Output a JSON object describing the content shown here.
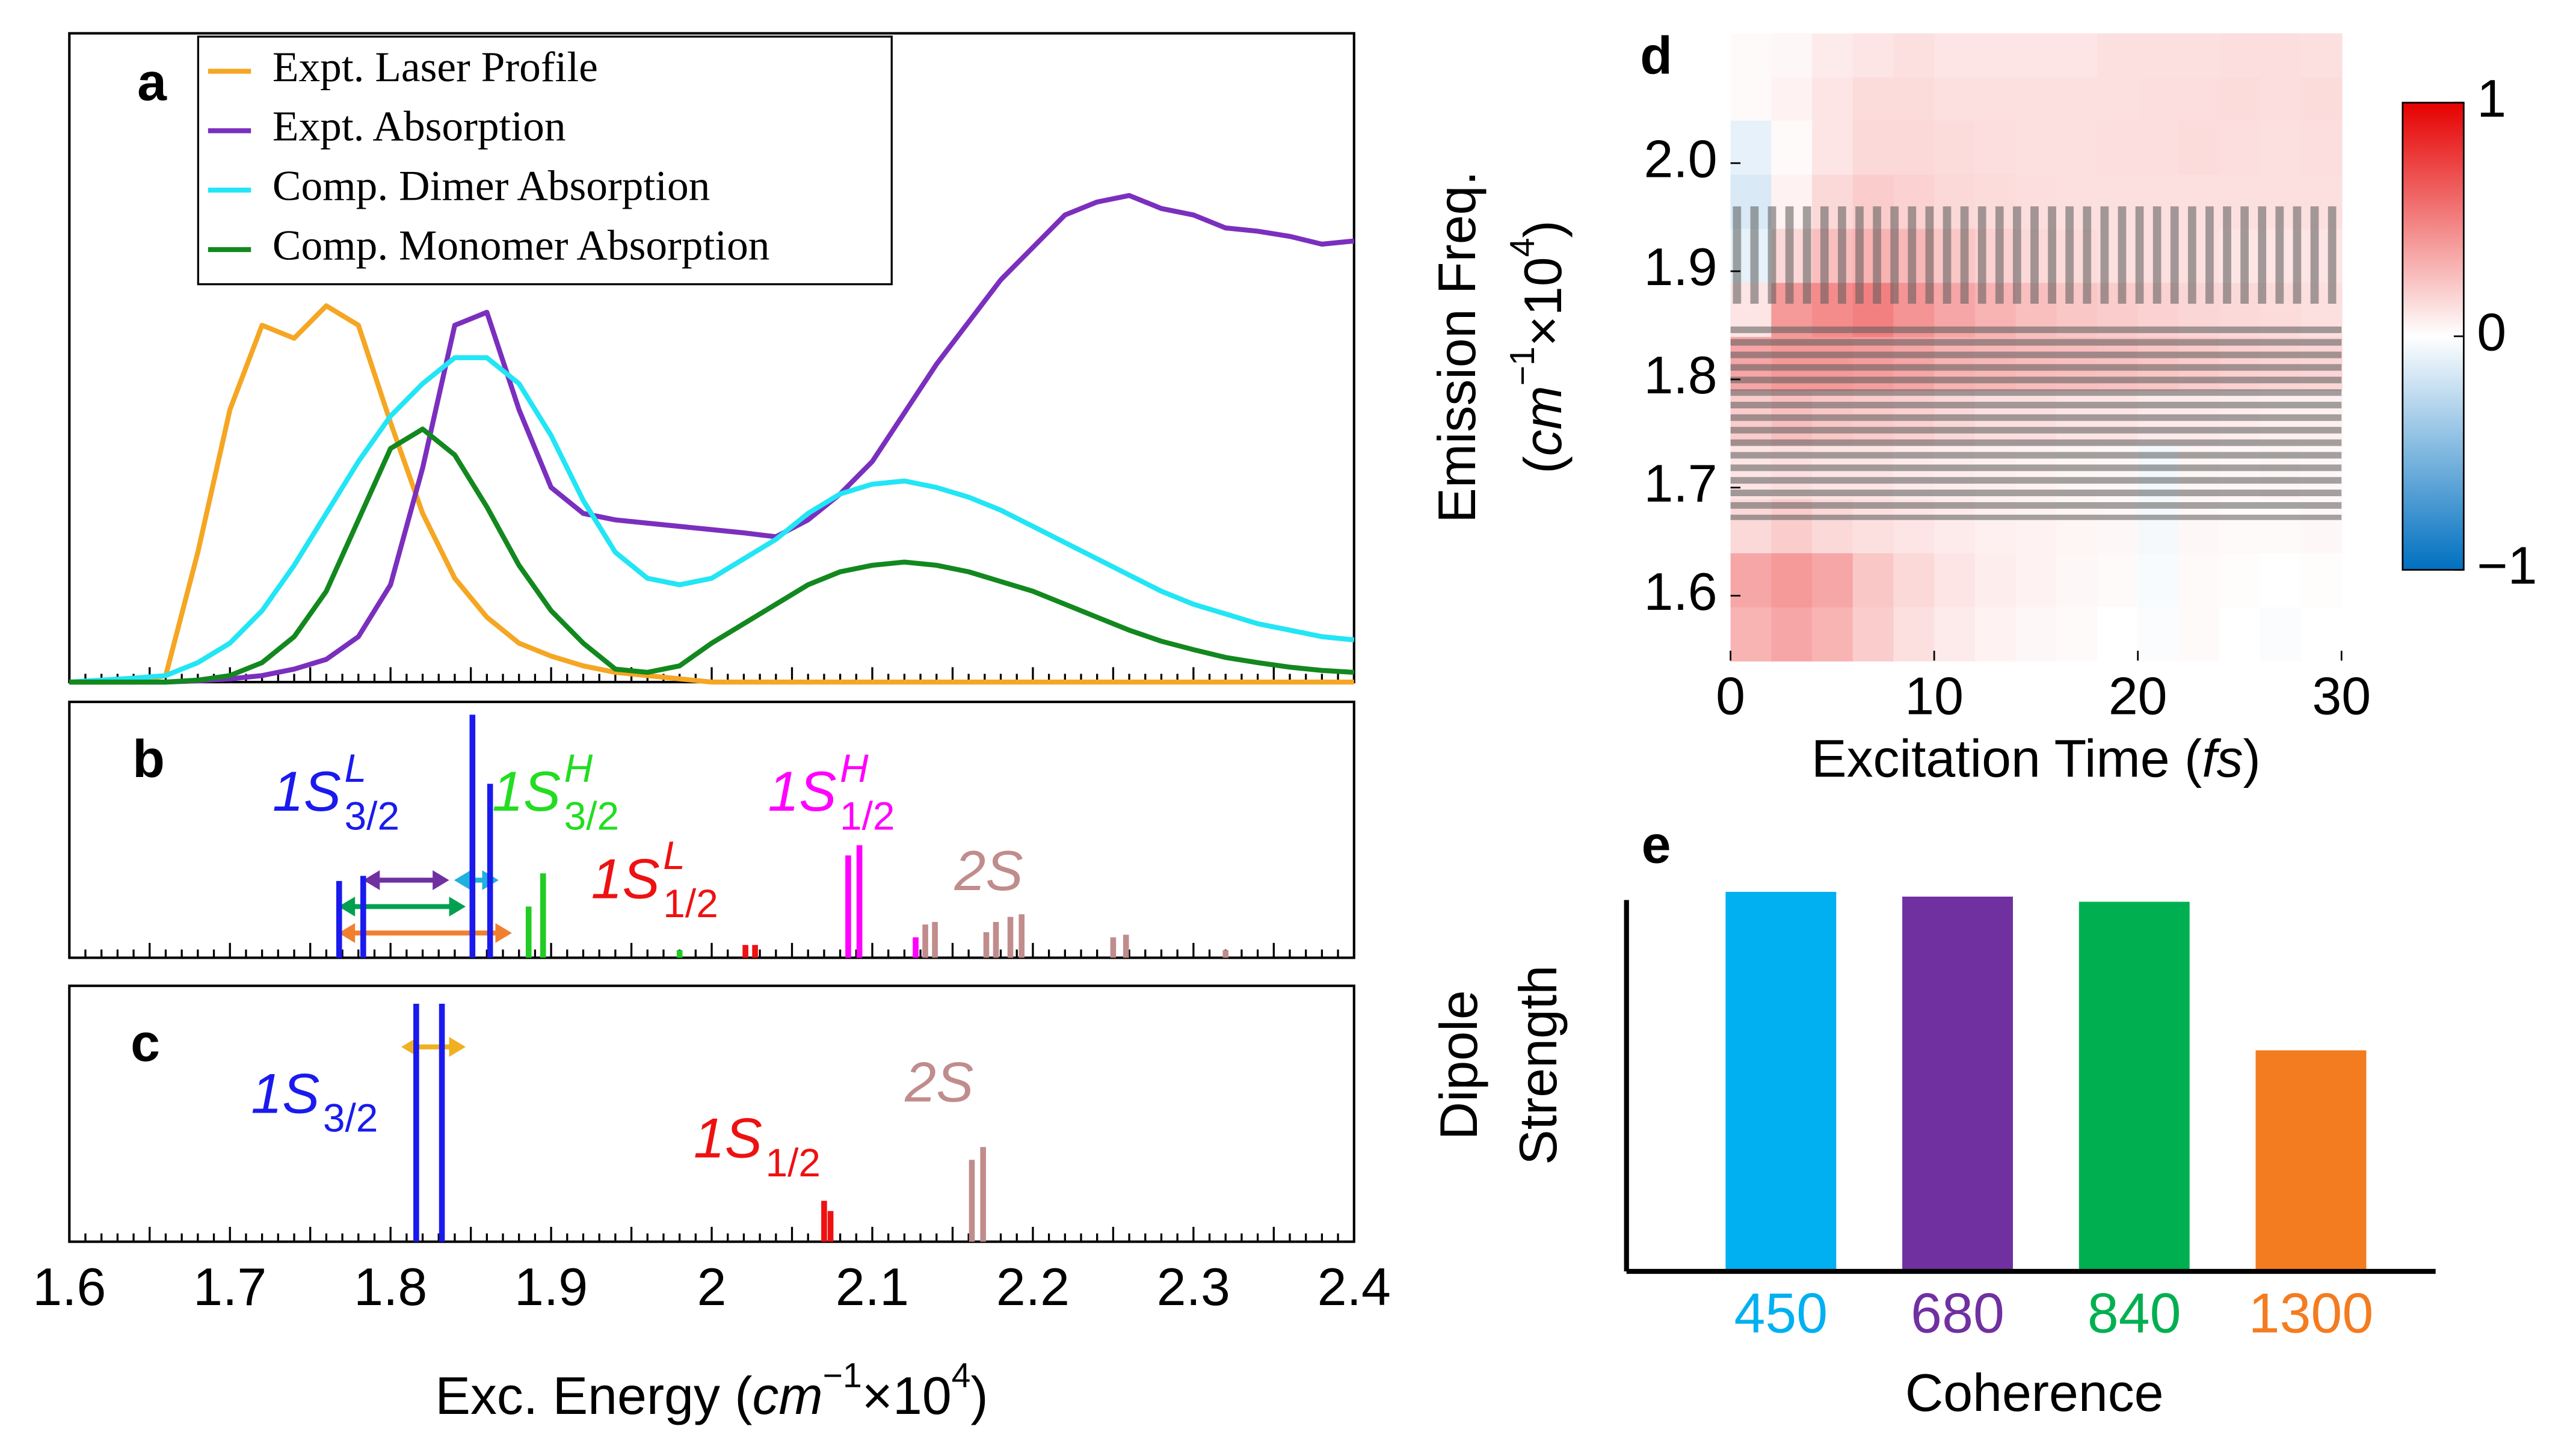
{
  "chart_data": [
    {
      "type": "line",
      "label": "a",
      "legend": "upper left",
      "xlim": [
        1.6,
        2.4
      ],
      "ylim": [
        0,
        1
      ],
      "x": [
        1.6,
        1.62,
        1.64,
        1.66,
        1.68,
        1.7,
        1.72,
        1.74,
        1.76,
        1.78,
        1.8,
        1.82,
        1.84,
        1.86,
        1.88,
        1.9,
        1.92,
        1.94,
        1.96,
        1.98,
        2.0,
        2.02,
        2.04,
        2.06,
        2.08,
        2.1,
        2.12,
        2.14,
        2.16,
        2.18,
        2.2,
        2.22,
        2.24,
        2.26,
        2.28,
        2.3,
        2.32,
        2.34,
        2.36,
        2.38,
        2.4
      ],
      "series": [
        {
          "name": "Expt. Laser Profile",
          "color": "#f5a623",
          "values": [
            0,
            0,
            0,
            0.01,
            0.2,
            0.42,
            0.55,
            0.53,
            0.58,
            0.55,
            0.4,
            0.26,
            0.16,
            0.1,
            0.06,
            0.04,
            0.025,
            0.015,
            0.01,
            0.005,
            0,
            0,
            0,
            0,
            0,
            0,
            0,
            0,
            0,
            0,
            0,
            0,
            0,
            0,
            0,
            0,
            0,
            0,
            0,
            0,
            0
          ]
        },
        {
          "name": "Expt. Absorption",
          "color": "#7b2fbe",
          "values": [
            0,
            0,
            0,
            0,
            0.002,
            0.005,
            0.01,
            0.02,
            0.035,
            0.07,
            0.15,
            0.33,
            0.55,
            0.57,
            0.42,
            0.3,
            0.26,
            0.25,
            0.245,
            0.24,
            0.235,
            0.23,
            0.224,
            0.25,
            0.29,
            0.34,
            0.415,
            0.49,
            0.555,
            0.62,
            0.67,
            0.72,
            0.74,
            0.75,
            0.73,
            0.72,
            0.7,
            0.695,
            0.687,
            0.675,
            0.68
          ]
        },
        {
          "name": "Comp. Dimer Absorption",
          "color": "#22e5f5",
          "values": [
            0,
            0.003,
            0.006,
            0.01,
            0.03,
            0.06,
            0.11,
            0.18,
            0.26,
            0.34,
            0.41,
            0.46,
            0.5,
            0.5,
            0.46,
            0.38,
            0.28,
            0.2,
            0.16,
            0.15,
            0.16,
            0.19,
            0.22,
            0.26,
            0.29,
            0.305,
            0.31,
            0.3,
            0.285,
            0.265,
            0.24,
            0.215,
            0.19,
            0.165,
            0.14,
            0.12,
            0.105,
            0.09,
            0.08,
            0.07,
            0.065
          ]
        },
        {
          "name": "Comp. Monomer Absorption",
          "color": "#12881e",
          "values": [
            0,
            0,
            0,
            0,
            0.003,
            0.01,
            0.03,
            0.07,
            0.14,
            0.25,
            0.36,
            0.39,
            0.35,
            0.27,
            0.18,
            0.11,
            0.06,
            0.02,
            0.015,
            0.025,
            0.06,
            0.09,
            0.12,
            0.15,
            0.17,
            0.18,
            0.185,
            0.18,
            0.17,
            0.155,
            0.14,
            0.12,
            0.1,
            0.08,
            0.063,
            0.05,
            0.038,
            0.03,
            0.023,
            0.018,
            0.015
          ]
        }
      ]
    },
    {
      "type": "stick",
      "label": "b",
      "xlim": [
        1.6,
        2.4
      ],
      "ylim": [
        0,
        1
      ],
      "series": [
        {
          "color": "#1a1aee",
          "x": [
            1.768,
            1.783,
            1.851,
            1.862
          ],
          "values": [
            0.3,
            0.32,
            0.95,
            0.68
          ]
        },
        {
          "color": "#22cc22",
          "x": [
            1.886,
            1.895,
            1.98
          ],
          "values": [
            0.2,
            0.33,
            0.03
          ]
        },
        {
          "color": "#ee1111",
          "x": [
            2.021,
            2.027
          ],
          "values": [
            0.05,
            0.05
          ]
        },
        {
          "color": "#ff00ff",
          "x": [
            2.085,
            2.092,
            2.127
          ],
          "values": [
            0.4,
            0.44,
            0.08
          ]
        },
        {
          "color": "#c08c8c",
          "x": [
            2.133,
            2.139,
            2.171,
            2.177,
            2.186,
            2.193,
            2.25,
            2.258,
            2.32
          ],
          "values": [
            0.13,
            0.14,
            0.1,
            0.14,
            0.16,
            0.17,
            0.08,
            0.09,
            0.03
          ]
        }
      ],
      "annotations": [
        {
          "text": "1S",
          "sup": "L",
          "sub": "3/2",
          "color": "#1a1aee"
        },
        {
          "text": "1S",
          "sup": "H",
          "sub": "3/2",
          "color": "#22dd22"
        },
        {
          "text": "1S",
          "sup": "L",
          "sub": "1/2",
          "color": "#ee1111"
        },
        {
          "text": "1S",
          "sup": "H",
          "sub": "1/2",
          "color": "#ff00ff"
        },
        {
          "text": "2S",
          "color": "#c08c8c"
        }
      ]
    },
    {
      "type": "stick",
      "label": "c",
      "xlim": [
        1.6,
        2.4
      ],
      "ylim": [
        0,
        1
      ],
      "xticks": [
        1.6,
        1.7,
        1.8,
        1.9,
        2.0,
        2.1,
        2.2,
        2.3,
        2.4
      ],
      "xlabel": [
        {
          "text": "Exc. Energy ("
        },
        {
          "text": "cm",
          "format": "italic"
        },
        {
          "text": "−1",
          "format": "sup"
        },
        {
          "text": "×10"
        },
        {
          "text": "4",
          "format": "sup"
        },
        {
          "text": ")"
        }
      ],
      "series": [
        {
          "color": "#1a1aee",
          "x": [
            1.816,
            1.832
          ],
          "values": [
            0.93,
            0.93
          ]
        },
        {
          "color": "#ee1111",
          "x": [
            2.07,
            2.074
          ],
          "values": [
            0.16,
            0.12
          ]
        },
        {
          "color": "#c08c8c",
          "x": [
            2.162,
            2.169
          ],
          "values": [
            0.32,
            0.37
          ]
        }
      ],
      "annotations": [
        {
          "text": "1S",
          "sub": "3/2",
          "color": "#1a1aee"
        },
        {
          "text": "1S",
          "sub": "1/2",
          "color": "#ee1111"
        },
        {
          "text": "2S",
          "color": "#c08c8c"
        }
      ]
    },
    {
      "type": "heatmap",
      "label": "d",
      "xlim": [
        0,
        30
      ],
      "ylim": [
        1.54,
        2.12
      ],
      "xticks": [
        0,
        10,
        20,
        30
      ],
      "yticks": [
        1.6,
        1.7,
        1.8,
        1.9,
        {
          "value": 2,
          "label": "2.0"
        }
      ],
      "xlabel": [
        {
          "text": "Excitation Time ("
        },
        {
          "text": "fs",
          "format": "italic"
        },
        {
          "text": ")"
        }
      ],
      "ylabel": [
        [
          {
            "text": "Emission Freq."
          }
        ],
        [
          {
            "text": "("
          },
          {
            "text": "cm",
            "format": "italic"
          },
          {
            "text": "−1",
            "format": "sup"
          },
          {
            "text": "×10"
          },
          {
            "text": "4",
            "format": "sup"
          },
          {
            "text": ")"
          }
        ]
      ],
      "xbins": [
        0,
        2,
        4,
        6,
        8,
        10,
        12,
        14,
        16,
        18,
        20,
        22,
        24,
        26,
        28,
        30
      ],
      "ybins": [
        1.54,
        1.59,
        1.64,
        1.69,
        1.74,
        1.79,
        1.84,
        1.89,
        1.94,
        1.99,
        2.04,
        2.08,
        2.12
      ],
      "z": [
        [
          0.3,
          0.35,
          0.3,
          0.2,
          0.12,
          0.08,
          0.05,
          0.03,
          0.02,
          0,
          -0.02,
          0.02,
          0,
          -0.02,
          0
        ],
        [
          0.35,
          0.4,
          0.35,
          0.22,
          0.15,
          0.1,
          0.07,
          0.05,
          0.03,
          0.02,
          -0.03,
          0.02,
          0.01,
          0,
          0.01
        ],
        [
          0.15,
          0.2,
          0.15,
          0.12,
          0.1,
          0.08,
          0.06,
          0.05,
          0.04,
          0.03,
          -0.04,
          0.03,
          0.02,
          0.02,
          0.03
        ],
        [
          0.1,
          0.12,
          0.1,
          0.1,
          0.08,
          0.07,
          0.06,
          0.05,
          0.04,
          0.03,
          -0.05,
          0.04,
          0.03,
          0.04,
          0.03
        ],
        [
          0.2,
          0.25,
          0.22,
          0.2,
          0.18,
          0.15,
          0.12,
          0.12,
          0.1,
          0.1,
          0.08,
          0.08,
          0.07,
          0.06,
          0.06
        ],
        [
          0.35,
          0.4,
          0.4,
          0.38,
          0.35,
          0.3,
          0.28,
          0.26,
          0.25,
          0.24,
          0.22,
          0.2,
          0.18,
          0.17,
          0.16
        ],
        [
          0.1,
          0.4,
          0.45,
          0.5,
          0.42,
          0.35,
          0.3,
          0.25,
          0.22,
          0.2,
          0.18,
          0.16,
          0.15,
          0.14,
          0.12
        ],
        [
          -0.1,
          0.15,
          0.25,
          0.3,
          0.28,
          0.22,
          0.18,
          0.15,
          0.14,
          0.12,
          0.12,
          0.12,
          0.1,
          0.1,
          0.1
        ],
        [
          -0.15,
          0.05,
          0.15,
          0.2,
          0.18,
          0.15,
          0.14,
          0.13,
          0.12,
          0.12,
          0.12,
          0.12,
          0.12,
          0.12,
          0.12
        ],
        [
          -0.1,
          0.02,
          0.1,
          0.15,
          0.15,
          0.14,
          0.13,
          0.12,
          0.12,
          0.13,
          0.13,
          0.14,
          0.13,
          0.12,
          0.13
        ],
        [
          0.02,
          0.05,
          0.1,
          0.14,
          0.14,
          0.12,
          0.12,
          0.12,
          0.12,
          0.12,
          0.13,
          0.13,
          0.14,
          0.13,
          0.14
        ],
        [
          0.02,
          0.03,
          0.08,
          0.1,
          0.12,
          0.1,
          0.1,
          0.1,
          0.1,
          0.12,
          0.12,
          0.12,
          0.13,
          0.13,
          0.12
        ]
      ],
      "colorbar": {
        "clim": [
          -1,
          1
        ],
        "ticks": [
          1,
          0,
          {
            "value": -1,
            "label": "−1"
          }
        ],
        "colors": [
          "#0070c0",
          "#ffffff",
          "#e60000"
        ]
      }
    },
    {
      "type": "bar",
      "label": "e",
      "ylim": [
        0,
        1
      ],
      "xlabel": "Coherence",
      "ylabel": [
        "Dipole",
        "Strength"
      ],
      "categories": [
        "450",
        "680",
        "840",
        "1300"
      ],
      "values": [
        0.958,
        0.946,
        0.933,
        0.558
      ],
      "colors": [
        "#00b0f0",
        "#7030a0",
        "#00b050",
        "#f47c20"
      ]
    }
  ]
}
